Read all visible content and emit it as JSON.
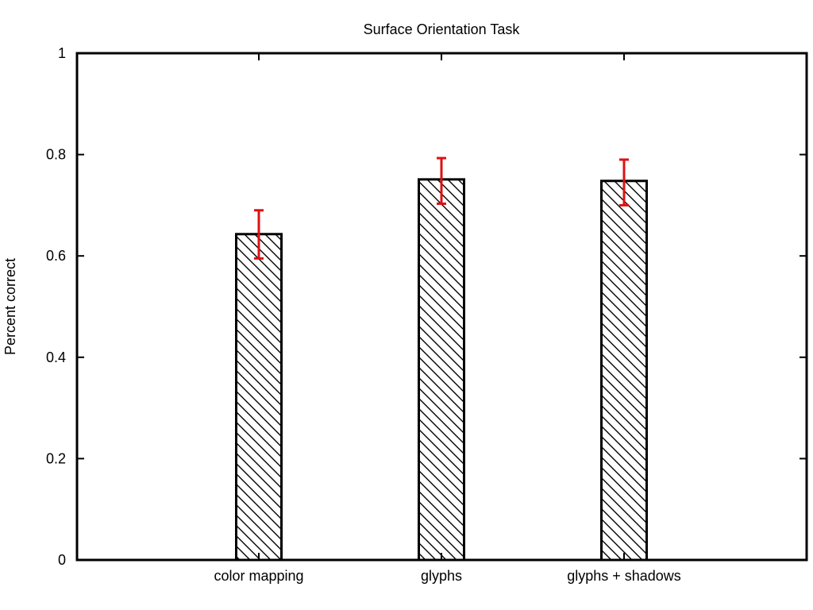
{
  "chart_data": {
    "type": "bar",
    "title": "Surface Orientation Task",
    "xlabel": "",
    "ylabel": "Percent correct",
    "categories": [
      "color mapping",
      "glyphs",
      "glyphs + shadows"
    ],
    "values": [
      0.643,
      0.751,
      0.748
    ],
    "error_low": [
      0.595,
      0.703,
      0.7
    ],
    "error_high": [
      0.69,
      0.793,
      0.79
    ],
    "ylim": [
      0,
      1
    ],
    "yticks": [
      "0",
      "0.2",
      "0.4",
      "0.6",
      "0.8",
      "1"
    ],
    "grid": false,
    "legend": "none",
    "bar_fill": "diagonal-hatch",
    "colors": {
      "bar_edge": "#000000",
      "hatch": "#000000",
      "error_bar": "#dd1111",
      "axis": "#000000",
      "background": "#ffffff"
    }
  }
}
